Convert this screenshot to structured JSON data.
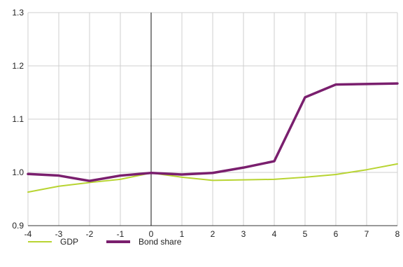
{
  "chart_data": {
    "type": "line",
    "title": "",
    "xlabel": "",
    "ylabel": "",
    "x": [
      -4,
      -3,
      -2,
      -1,
      0,
      1,
      2,
      3,
      4,
      5,
      6,
      7,
      8
    ],
    "xlim": [
      -4,
      8
    ],
    "ylim": [
      0.9,
      1.3
    ],
    "x_ticks": [
      "-4",
      "-3",
      "-2",
      "-1",
      "0",
      "1",
      "2",
      "3",
      "4",
      "5",
      "6",
      "7",
      "8"
    ],
    "y_ticks": [
      "0.9",
      "1.0",
      "1.1",
      "1.2",
      "1.3"
    ],
    "grid": true,
    "reference_line_x": 0,
    "legend_position": "bottom-left",
    "series": [
      {
        "name": "GDP",
        "color": "#b8d432",
        "values": [
          0.963,
          0.974,
          0.981,
          0.987,
          0.999,
          0.991,
          0.985,
          0.986,
          0.987,
          0.991,
          0.996,
          1.005,
          1.016
        ]
      },
      {
        "name": "Bond share",
        "color": "#7a1f6e",
        "values": [
          0.997,
          0.994,
          0.984,
          0.994,
          0.999,
          0.996,
          0.999,
          1.009,
          1.021,
          1.141,
          1.165,
          1.166,
          1.167
        ]
      }
    ]
  }
}
